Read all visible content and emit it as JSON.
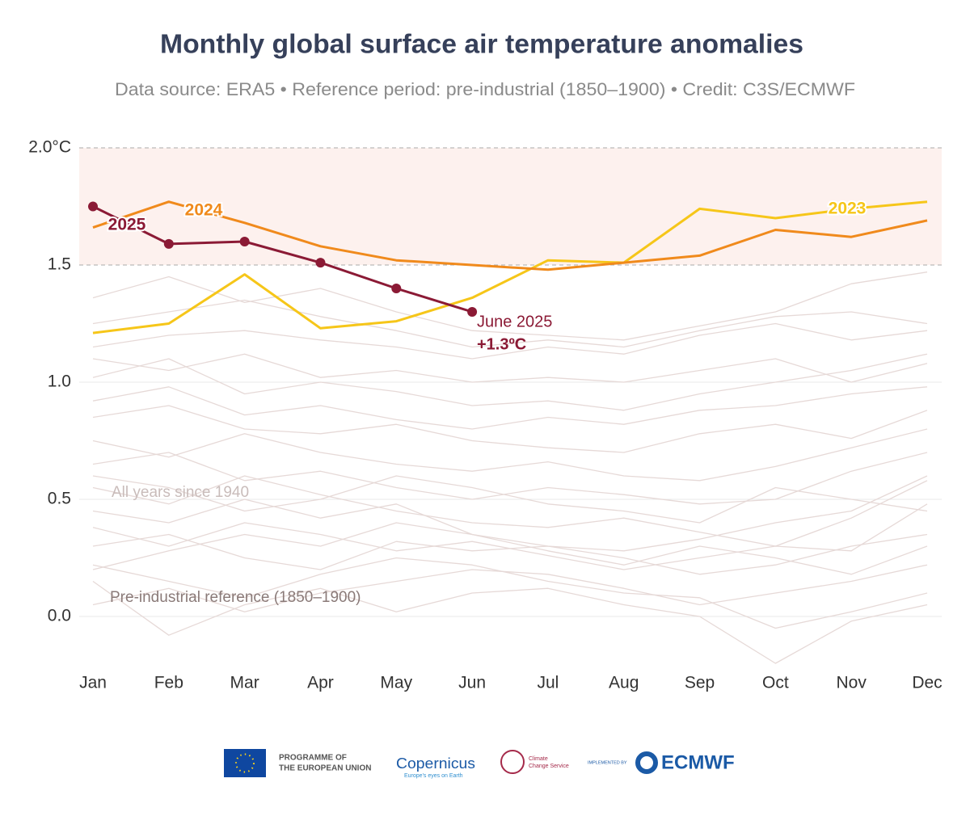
{
  "chart_data": {
    "type": "line",
    "title": "Monthly global surface air temperature anomalies",
    "subtitle": "Data source: ERA5 • Reference period: pre-industrial (1850–1900) • Credit: C3S/ECMWF",
    "categories": [
      "Jan",
      "Feb",
      "Mar",
      "Apr",
      "May",
      "Jun",
      "Jul",
      "Aug",
      "Sep",
      "Oct",
      "Nov",
      "Dec"
    ],
    "ylim": [
      -0.25,
      2.0
    ],
    "yticks": [
      {
        "value": 0,
        "label": "0.0"
      },
      0.5,
      {
        "value": 1,
        "label": "1.0"
      },
      1.5,
      {
        "value": 2,
        "label": "2.0°C"
      }
    ],
    "grid": true,
    "highlight_band": [
      1.5,
      2.0
    ],
    "band_color": "#fdf1ee",
    "series": [
      {
        "color": "#e6d9d7",
        "values": [
          0.05,
          0.12,
          0.02,
          0.1,
          0.15,
          0.2,
          0.18,
          0.12,
          0.05,
          0.1,
          0.15,
          0.22
        ]
      },
      {
        "color": "#e6d9d7",
        "values": [
          0.22,
          0.15,
          0.08,
          0.18,
          0.25,
          0.22,
          0.15,
          0.1,
          0.08,
          -0.05,
          0.02,
          0.1
        ]
      },
      {
        "color": "#e6d9d7",
        "values": [
          0.3,
          0.35,
          0.25,
          0.2,
          0.32,
          0.28,
          0.3,
          0.25,
          0.18,
          0.22,
          0.3,
          0.35
        ]
      },
      {
        "color": "#e6d9d7",
        "values": [
          0.38,
          0.3,
          0.4,
          0.35,
          0.28,
          0.32,
          0.26,
          0.2,
          0.25,
          0.3,
          0.28,
          0.48
        ]
      },
      {
        "color": "#e6d9d7",
        "values": [
          0.15,
          -0.08,
          0.05,
          0.12,
          0.02,
          0.1,
          0.12,
          0.05,
          0.0,
          -0.2,
          -0.02,
          0.05
        ]
      },
      {
        "color": "#e6d9d7",
        "values": [
          0.45,
          0.4,
          0.5,
          0.42,
          0.48,
          0.35,
          0.3,
          0.28,
          0.33,
          0.4,
          0.45,
          0.6
        ]
      },
      {
        "color": "#e6d9d7",
        "values": [
          0.55,
          0.48,
          0.6,
          0.52,
          0.45,
          0.4,
          0.38,
          0.42,
          0.36,
          0.3,
          0.42,
          0.58
        ]
      },
      {
        "color": "#e6d9d7",
        "values": [
          0.65,
          0.7,
          0.58,
          0.62,
          0.55,
          0.5,
          0.55,
          0.52,
          0.48,
          0.5,
          0.62,
          0.7
        ]
      },
      {
        "color": "#e6d9d7",
        "values": [
          0.75,
          0.68,
          0.78,
          0.7,
          0.65,
          0.62,
          0.66,
          0.6,
          0.58,
          0.64,
          0.72,
          0.8
        ]
      },
      {
        "color": "#e6d9d7",
        "values": [
          0.85,
          0.9,
          0.8,
          0.78,
          0.82,
          0.75,
          0.72,
          0.7,
          0.78,
          0.82,
          0.76,
          0.88
        ]
      },
      {
        "color": "#e6d9d7",
        "values": [
          0.92,
          0.98,
          0.86,
          0.9,
          0.84,
          0.8,
          0.85,
          0.82,
          0.88,
          0.9,
          0.95,
          0.98
        ]
      },
      {
        "color": "#e6d9d7",
        "values": [
          1.02,
          1.1,
          0.95,
          1.0,
          0.96,
          0.9,
          0.92,
          0.88,
          0.95,
          1.0,
          1.05,
          1.12
        ]
      },
      {
        "color": "#e6d9d7",
        "values": [
          1.1,
          1.05,
          1.12,
          1.02,
          1.05,
          1.0,
          1.02,
          1.0,
          1.05,
          1.1,
          1.0,
          1.08
        ]
      },
      {
        "color": "#e6d9d7",
        "values": [
          1.15,
          1.2,
          1.22,
          1.18,
          1.15,
          1.1,
          1.15,
          1.12,
          1.2,
          1.25,
          1.18,
          1.22
        ]
      },
      {
        "color": "#e6d9d7",
        "values": [
          1.25,
          1.3,
          1.35,
          1.28,
          1.22,
          1.15,
          1.18,
          1.15,
          1.22,
          1.28,
          1.3,
          1.25
        ]
      },
      {
        "color": "#e6d9d7",
        "values": [
          1.36,
          1.45,
          1.34,
          1.4,
          1.3,
          1.22,
          1.2,
          1.18,
          1.24,
          1.3,
          1.42,
          1.47
        ]
      },
      {
        "color": "#e6d9d7",
        "values": [
          0.2,
          0.28,
          0.35,
          0.3,
          0.4,
          0.35,
          0.28,
          0.22,
          0.3,
          0.25,
          0.18,
          0.3
        ]
      },
      {
        "color": "#e6d9d7",
        "values": [
          0.6,
          0.55,
          0.45,
          0.5,
          0.6,
          0.55,
          0.48,
          0.45,
          0.4,
          0.55,
          0.5,
          0.45
        ]
      },
      {
        "name": "2023",
        "color": "#f6c619",
        "values": [
          1.21,
          1.25,
          1.46,
          1.23,
          1.26,
          1.36,
          1.52,
          1.51,
          1.74,
          1.7,
          1.74,
          1.77
        ]
      },
      {
        "name": "2024",
        "color": "#f08a1c",
        "values": [
          1.66,
          1.77,
          1.68,
          1.58,
          1.52,
          1.5,
          1.48,
          1.51,
          1.54,
          1.65,
          1.62,
          1.69
        ]
      },
      {
        "name": "2025",
        "color": "#8b1a35",
        "markers": true,
        "values": [
          1.75,
          1.59,
          1.6,
          1.51,
          1.4,
          1.3,
          null,
          null,
          null,
          null,
          null,
          null
        ]
      }
    ],
    "annotations": [
      "June 2025",
      "+1.3ºC",
      "All years since 1940",
      "Pre-industrial reference (1850–1900)"
    ]
  },
  "footer": {
    "eu": [
      "PROGRAMME OF",
      "THE EUROPEAN UNION"
    ],
    "copernicus": "Copernicus",
    "copernicus_tagline": "Europe's eyes on Earth",
    "c3s": [
      "Climate",
      "Change Service"
    ],
    "implemented_by": "IMPLEMENTED BY",
    "ecmwf": "ECMWF"
  }
}
